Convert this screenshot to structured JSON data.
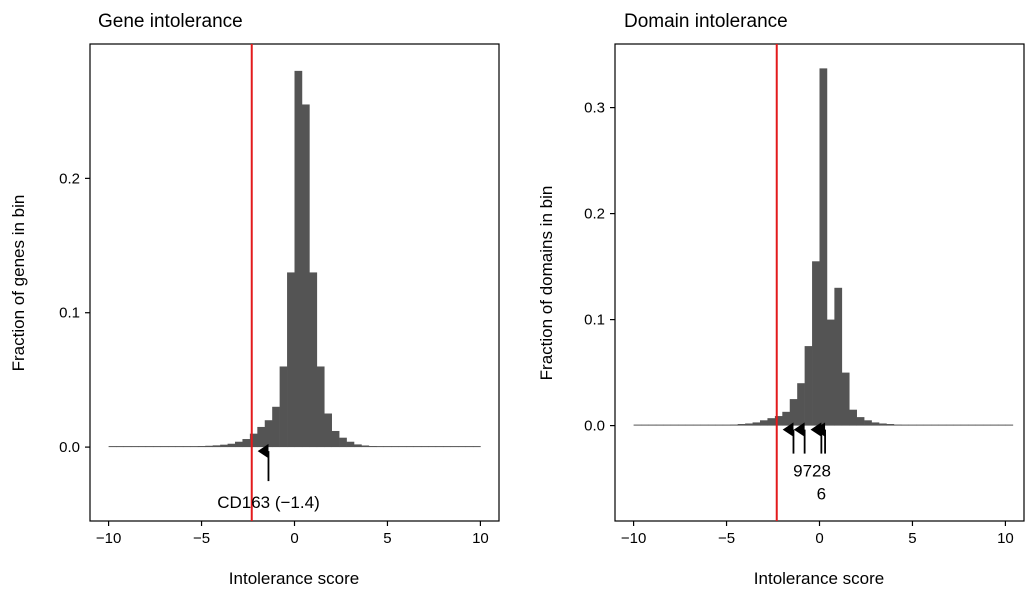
{
  "chart_data": [
    {
      "type": "bar",
      "title": "Gene intolerance",
      "xlabel": "Intolerance score",
      "ylabel": "Fraction of genes in bin",
      "xlim": [
        -11,
        11
      ],
      "ylim": [
        -0.055,
        0.3
      ],
      "xticks": [
        -10,
        -5,
        0,
        5,
        10
      ],
      "xtick_labels": [
        "−10",
        "−5",
        "0",
        "5",
        "10"
      ],
      "yticks": [
        0.0,
        0.1,
        0.2
      ],
      "ytick_labels": [
        "0.0",
        "0.1",
        "0.2"
      ],
      "bin_width": 0.4,
      "bins": [
        {
          "x": -9.8,
          "y": 0.0003
        },
        {
          "x": -9.4,
          "y": 0.0002
        },
        {
          "x": -9.0,
          "y": 0.0002
        },
        {
          "x": -8.6,
          "y": 0.0002
        },
        {
          "x": -8.2,
          "y": 0.0002
        },
        {
          "x": -7.8,
          "y": 0.0002
        },
        {
          "x": -7.4,
          "y": 0.0002
        },
        {
          "x": -7.0,
          "y": 0.0003
        },
        {
          "x": -6.6,
          "y": 0.0003
        },
        {
          "x": -6.2,
          "y": 0.0004
        },
        {
          "x": -5.8,
          "y": 0.0005
        },
        {
          "x": -5.4,
          "y": 0.0006
        },
        {
          "x": -5.0,
          "y": 0.0008
        },
        {
          "x": -4.6,
          "y": 0.001
        },
        {
          "x": -4.2,
          "y": 0.0013
        },
        {
          "x": -3.8,
          "y": 0.0018
        },
        {
          "x": -3.4,
          "y": 0.0025
        },
        {
          "x": -3.0,
          "y": 0.004
        },
        {
          "x": -2.6,
          "y": 0.006
        },
        {
          "x": -2.2,
          "y": 0.01
        },
        {
          "x": -1.8,
          "y": 0.015
        },
        {
          "x": -1.4,
          "y": 0.02
        },
        {
          "x": -1.0,
          "y": 0.03
        },
        {
          "x": -0.6,
          "y": 0.06
        },
        {
          "x": -0.2,
          "y": 0.13
        },
        {
          "x": 0.2,
          "y": 0.28
        },
        {
          "x": 0.6,
          "y": 0.255
        },
        {
          "x": 1.0,
          "y": 0.13
        },
        {
          "x": 1.4,
          "y": 0.06
        },
        {
          "x": 1.8,
          "y": 0.025
        },
        {
          "x": 2.2,
          "y": 0.012
        },
        {
          "x": 2.6,
          "y": 0.007
        },
        {
          "x": 3.0,
          "y": 0.004
        },
        {
          "x": 3.4,
          "y": 0.002
        },
        {
          "x": 3.8,
          "y": 0.0012
        },
        {
          "x": 4.2,
          "y": 0.0008
        },
        {
          "x": 4.6,
          "y": 0.0005
        },
        {
          "x": 5.0,
          "y": 0.0004
        },
        {
          "x": 5.4,
          "y": 0.0003
        },
        {
          "x": 5.8,
          "y": 0.0002
        },
        {
          "x": 6.2,
          "y": 0.0002
        },
        {
          "x": 6.6,
          "y": 0.0002
        },
        {
          "x": 7.0,
          "y": 0.0002
        },
        {
          "x": 7.4,
          "y": 0.0002
        },
        {
          "x": 7.8,
          "y": 0.0002
        },
        {
          "x": 8.2,
          "y": 0.0002
        },
        {
          "x": 8.6,
          "y": 0.0002
        },
        {
          "x": 9.0,
          "y": 0.0002
        },
        {
          "x": 9.4,
          "y": 0.0002
        },
        {
          "x": 9.8,
          "y": 0.0002
        }
      ],
      "threshold_x": -2.3,
      "threshold_color": "#e31a1c",
      "bar_color": "#545454",
      "annotations": [
        {
          "x": -1.4,
          "label": "CD163 (−1.4)"
        }
      ]
    },
    {
      "type": "bar",
      "title": "Domain intolerance",
      "xlabel": "Intolerance score",
      "ylabel": "Fraction of domains in bin",
      "xlim": [
        -11,
        11
      ],
      "ylim": [
        -0.09,
        0.36
      ],
      "xticks": [
        -10,
        -5,
        0,
        5,
        10
      ],
      "xtick_labels": [
        "−10",
        "−5",
        "0",
        "5",
        "10"
      ],
      "yticks": [
        0.0,
        0.1,
        0.2,
        0.3
      ],
      "ytick_labels": [
        "0.0",
        "0.1",
        "0.2",
        "0.3"
      ],
      "bin_width": 0.4,
      "bins": [
        {
          "x": -9.8,
          "y": 0.0002
        },
        {
          "x": -9.4,
          "y": 0.0002
        },
        {
          "x": -9.0,
          "y": 0.0002
        },
        {
          "x": -8.6,
          "y": 0.0002
        },
        {
          "x": -8.2,
          "y": 0.0002
        },
        {
          "x": -7.8,
          "y": 0.0002
        },
        {
          "x": -7.4,
          "y": 0.0002
        },
        {
          "x": -7.0,
          "y": 0.0003
        },
        {
          "x": -6.6,
          "y": 0.0003
        },
        {
          "x": -6.2,
          "y": 0.0004
        },
        {
          "x": -5.8,
          "y": 0.0005
        },
        {
          "x": -5.4,
          "y": 0.0006
        },
        {
          "x": -5.0,
          "y": 0.0008
        },
        {
          "x": -4.6,
          "y": 0.001
        },
        {
          "x": -4.2,
          "y": 0.0015
        },
        {
          "x": -3.8,
          "y": 0.002
        },
        {
          "x": -3.4,
          "y": 0.003
        },
        {
          "x": -3.0,
          "y": 0.005
        },
        {
          "x": -2.6,
          "y": 0.007
        },
        {
          "x": -2.2,
          "y": 0.009
        },
        {
          "x": -1.8,
          "y": 0.013
        },
        {
          "x": -1.4,
          "y": 0.025
        },
        {
          "x": -1.0,
          "y": 0.04
        },
        {
          "x": -0.6,
          "y": 0.075
        },
        {
          "x": -0.2,
          "y": 0.155
        },
        {
          "x": 0.2,
          "y": 0.337
        },
        {
          "x": 0.6,
          "y": 0.1
        },
        {
          "x": 1.0,
          "y": 0.13
        },
        {
          "x": 1.4,
          "y": 0.05
        },
        {
          "x": 1.8,
          "y": 0.015
        },
        {
          "x": 2.2,
          "y": 0.008
        },
        {
          "x": 2.6,
          "y": 0.005
        },
        {
          "x": 3.0,
          "y": 0.003
        },
        {
          "x": 3.4,
          "y": 0.002
        },
        {
          "x": 3.8,
          "y": 0.0015
        },
        {
          "x": 4.2,
          "y": 0.001
        },
        {
          "x": 4.6,
          "y": 0.0008
        },
        {
          "x": 5.0,
          "y": 0.0006
        },
        {
          "x": 5.4,
          "y": 0.0005
        },
        {
          "x": 5.8,
          "y": 0.0004
        },
        {
          "x": 6.2,
          "y": 0.0003
        },
        {
          "x": 6.6,
          "y": 0.0003
        },
        {
          "x": 7.0,
          "y": 0.0002
        },
        {
          "x": 7.4,
          "y": 0.0002
        },
        {
          "x": 7.8,
          "y": 0.0002
        },
        {
          "x": 8.2,
          "y": 0.0002
        },
        {
          "x": 8.6,
          "y": 0.0002
        },
        {
          "x": 9.0,
          "y": 0.0002
        },
        {
          "x": 9.4,
          "y": 0.0002
        },
        {
          "x": 9.8,
          "y": 0.0002
        },
        {
          "x": 10.2,
          "y": 0.0002
        }
      ],
      "threshold_x": -2.3,
      "threshold_color": "#e31a1c",
      "bar_color": "#545454",
      "arrow_positions": [
        -1.4,
        -0.8,
        0.1,
        0.3
      ],
      "annotation_lines": [
        "9728",
        "6"
      ]
    }
  ]
}
